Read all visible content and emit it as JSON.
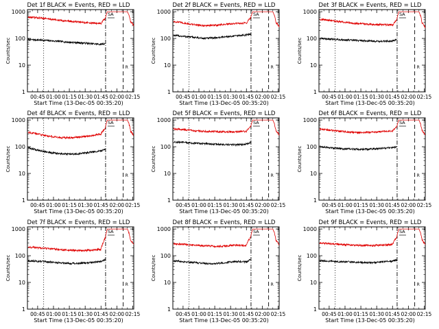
{
  "figure": {
    "common": {
      "xlabel": "Start Time (13-Dec-05 00:35:20)",
      "ylabel": "Counts/sec",
      "x_ticks": [
        "00:45",
        "01:00",
        "01:15",
        "01:30",
        "01:45",
        "02:00",
        "02:15"
      ],
      "y_ticks": [
        "1",
        "10",
        "100",
        "1000"
      ],
      "marker_labels": [
        "SA",
        "R"
      ],
      "colors": {
        "events": "#000000",
        "lld": "#e00000",
        "axes": "#000000"
      }
    }
  },
  "chart_data": [
    {
      "type": "line",
      "title": "Det 1f BLACK = Events, RED = LLD",
      "xlabel": "Start Time (13-Dec-05 00:35:20)",
      "ylabel": "Counts/sec",
      "x_range": [
        "00:35:20",
        "02:16:00"
      ],
      "ylim": [
        1,
        1200
      ],
      "y_scale": "log",
      "vlines": [
        {
          "time": "00:50:40",
          "style": "dotted"
        },
        {
          "time": "01:49:20",
          "style": "dash-dot"
        },
        {
          "time": "02:06:00",
          "style": "dashed"
        }
      ],
      "series": [
        {
          "name": "Events",
          "color": "#000000",
          "x": [
            "00:36",
            "00:45",
            "00:55",
            "01:05",
            "01:15",
            "01:25",
            "01:35",
            "01:45",
            "01:49"
          ],
          "y": [
            90,
            88,
            83,
            78,
            72,
            69,
            64,
            60,
            65
          ]
        },
        {
          "name": "LLD",
          "color": "#e00000",
          "x": [
            "00:36",
            "00:45",
            "00:55",
            "01:05",
            "01:15",
            "01:25",
            "01:35",
            "01:45",
            "01:49",
            "01:51",
            "02:10",
            "02:13",
            "02:16"
          ],
          "y": [
            620,
            600,
            540,
            480,
            440,
            410,
            380,
            360,
            560,
            1000,
            1000,
            420,
            300
          ]
        }
      ]
    },
    {
      "type": "line",
      "title": "Det 2f BLACK = Events, RED = LLD",
      "xlabel": "Start Time (13-Dec-05 00:35:20)",
      "ylabel": "Counts/sec",
      "x_range": [
        "00:35:20",
        "02:16:00"
      ],
      "ylim": [
        1,
        1200
      ],
      "y_scale": "log",
      "vlines": [
        {
          "time": "00:50:40",
          "style": "dotted"
        },
        {
          "time": "01:49:20",
          "style": "dash-dot"
        },
        {
          "time": "02:06:00",
          "style": "dashed"
        }
      ],
      "series": [
        {
          "name": "Events",
          "color": "#000000",
          "x": [
            "00:36",
            "00:45",
            "00:55",
            "01:05",
            "01:15",
            "01:25",
            "01:35",
            "01:45",
            "01:49"
          ],
          "y": [
            130,
            120,
            110,
            100,
            105,
            115,
            125,
            135,
            150
          ]
        },
        {
          "name": "LLD",
          "color": "#e00000",
          "x": [
            "00:36",
            "00:45",
            "00:55",
            "01:05",
            "01:15",
            "01:25",
            "01:35",
            "01:45",
            "01:49",
            "01:51",
            "02:10",
            "02:13",
            "02:16"
          ],
          "y": [
            430,
            380,
            330,
            300,
            310,
            340,
            360,
            380,
            600,
            1000,
            1000,
            400,
            280
          ]
        }
      ]
    },
    {
      "type": "line",
      "title": "Det 3f BLACK = Events, RED = LLD",
      "xlabel": "Start Time (13-Dec-05 00:35:20)",
      "ylabel": "Counts/sec",
      "x_range": [
        "00:35:20",
        "02:16:00"
      ],
      "ylim": [
        1,
        1200
      ],
      "y_scale": "log",
      "vlines": [
        {
          "time": "00:50:40",
          "style": "dotted"
        },
        {
          "time": "01:49:20",
          "style": "dash-dot"
        },
        {
          "time": "02:06:00",
          "style": "dashed"
        }
      ],
      "series": [
        {
          "name": "Events",
          "color": "#000000",
          "x": [
            "00:36",
            "00:45",
            "00:55",
            "01:05",
            "01:15",
            "01:25",
            "01:35",
            "01:45",
            "01:49"
          ],
          "y": [
            100,
            95,
            90,
            86,
            83,
            80,
            78,
            80,
            90
          ]
        },
        {
          "name": "LLD",
          "color": "#e00000",
          "x": [
            "00:36",
            "00:45",
            "00:55",
            "01:05",
            "01:15",
            "01:25",
            "01:35",
            "01:45",
            "01:49",
            "01:51",
            "02:10",
            "02:13",
            "02:16"
          ],
          "y": [
            520,
            480,
            420,
            380,
            360,
            340,
            330,
            320,
            500,
            1000,
            1000,
            380,
            260
          ]
        }
      ]
    },
    {
      "type": "line",
      "title": "Det 4f BLACK = Events, RED = LLD",
      "xlabel": "Start Time (13-Dec-05 00:35:20)",
      "ylabel": "Counts/sec",
      "x_range": [
        "00:35:20",
        "02:16:00"
      ],
      "ylim": [
        1,
        1200
      ],
      "y_scale": "log",
      "vlines": [
        {
          "time": "00:50:40",
          "style": "dotted"
        },
        {
          "time": "01:49:20",
          "style": "dash-dot"
        },
        {
          "time": "02:06:00",
          "style": "dashed"
        }
      ],
      "series": [
        {
          "name": "Events",
          "color": "#000000",
          "x": [
            "00:36",
            "00:45",
            "00:55",
            "01:05",
            "01:15",
            "01:25",
            "01:35",
            "01:45",
            "01:49"
          ],
          "y": [
            90,
            75,
            62,
            55,
            52,
            55,
            62,
            70,
            80
          ]
        },
        {
          "name": "LLD",
          "color": "#e00000",
          "x": [
            "00:36",
            "00:45",
            "00:55",
            "01:05",
            "01:15",
            "01:25",
            "01:35",
            "01:45",
            "01:49",
            "01:51",
            "02:10",
            "02:13",
            "02:16"
          ],
          "y": [
            350,
            300,
            250,
            220,
            215,
            230,
            260,
            300,
            500,
            1000,
            1000,
            380,
            260
          ]
        }
      ]
    },
    {
      "type": "line",
      "title": "Det 5f BLACK = Events, RED = LLD",
      "xlabel": "Start Time (13-Dec-05 00:35:20)",
      "ylabel": "Counts/sec",
      "x_range": [
        "00:35:20",
        "02:16:00"
      ],
      "ylim": [
        1,
        1200
      ],
      "y_scale": "log",
      "vlines": [
        {
          "time": "00:50:40",
          "style": "dotted"
        },
        {
          "time": "01:49:20",
          "style": "dash-dot"
        },
        {
          "time": "02:06:00",
          "style": "dashed"
        }
      ],
      "series": [
        {
          "name": "Events",
          "color": "#000000",
          "x": [
            "00:36",
            "00:45",
            "00:55",
            "01:05",
            "01:15",
            "01:25",
            "01:35",
            "01:45",
            "01:49"
          ],
          "y": [
            150,
            145,
            135,
            130,
            125,
            120,
            118,
            125,
            145
          ]
        },
        {
          "name": "LLD",
          "color": "#e00000",
          "x": [
            "00:36",
            "00:45",
            "00:55",
            "01:05",
            "01:15",
            "01:25",
            "01:35",
            "01:45",
            "01:49",
            "01:51",
            "02:10",
            "02:13",
            "02:16"
          ],
          "y": [
            460,
            440,
            400,
            380,
            370,
            360,
            360,
            380,
            560,
            1000,
            1000,
            400,
            280
          ]
        }
      ]
    },
    {
      "type": "line",
      "title": "Det 6f BLACK = Events, RED = LLD",
      "xlabel": "Start Time (13-Dec-05 00:35:20)",
      "ylabel": "Counts/sec",
      "x_range": [
        "00:35:20",
        "02:16:00"
      ],
      "ylim": [
        1,
        1200
      ],
      "y_scale": "log",
      "vlines": [
        {
          "time": "00:50:40",
          "style": "dotted"
        },
        {
          "time": "01:49:20",
          "style": "dash-dot"
        },
        {
          "time": "02:06:00",
          "style": "dashed"
        }
      ],
      "series": [
        {
          "name": "Events",
          "color": "#000000",
          "x": [
            "00:36",
            "00:45",
            "00:55",
            "01:05",
            "01:15",
            "01:25",
            "01:35",
            "01:45",
            "01:49"
          ],
          "y": [
            100,
            92,
            85,
            82,
            80,
            82,
            88,
            92,
            100
          ]
        },
        {
          "name": "LLD",
          "color": "#e00000",
          "x": [
            "00:36",
            "00:45",
            "00:55",
            "01:05",
            "01:15",
            "01:25",
            "01:35",
            "01:45",
            "01:49",
            "01:51",
            "02:10",
            "02:13",
            "02:16"
          ],
          "y": [
            450,
            420,
            380,
            350,
            340,
            350,
            370,
            390,
            560,
            1000,
            1000,
            400,
            280
          ]
        }
      ]
    },
    {
      "type": "line",
      "title": "Det 7f BLACK = Events, RED = LLD",
      "xlabel": "Start Time (13-Dec-05 00:35:20)",
      "ylabel": "Counts/sec",
      "x_range": [
        "00:35:20",
        "02:16:00"
      ],
      "ylim": [
        1,
        1200
      ],
      "y_scale": "log",
      "vlines": [
        {
          "time": "00:50:40",
          "style": "dotted"
        },
        {
          "time": "01:49:20",
          "style": "dash-dot"
        },
        {
          "time": "02:06:00",
          "style": "dashed"
        }
      ],
      "series": [
        {
          "name": "Events",
          "color": "#000000",
          "x": [
            "00:36",
            "00:45",
            "00:55",
            "01:05",
            "01:15",
            "01:25",
            "01:35",
            "01:45",
            "01:49"
          ],
          "y": [
            65,
            62,
            58,
            55,
            52,
            52,
            55,
            60,
            70
          ]
        },
        {
          "name": "LLD",
          "color": "#e00000",
          "x": [
            "00:36",
            "00:45",
            "00:55",
            "01:05",
            "01:15",
            "01:25",
            "01:35",
            "01:45",
            "01:49",
            "01:51",
            "02:10",
            "02:13",
            "02:16"
          ],
          "y": [
            210,
            200,
            185,
            170,
            160,
            155,
            160,
            175,
            450,
            1000,
            1000,
            380,
            260
          ]
        }
      ]
    },
    {
      "type": "line",
      "title": "Det 8f BLACK = Events, RED = LLD",
      "xlabel": "Start Time (13-Dec-05 00:35:20)",
      "ylabel": "Counts/sec",
      "x_range": [
        "00:35:20",
        "02:16:00"
      ],
      "ylim": [
        1,
        1200
      ],
      "y_scale": "log",
      "vlines": [
        {
          "time": "00:50:40",
          "style": "dotted"
        },
        {
          "time": "01:49:20",
          "style": "dash-dot"
        },
        {
          "time": "02:06:00",
          "style": "dashed"
        }
      ],
      "series": [
        {
          "name": "Events",
          "color": "#000000",
          "x": [
            "00:36",
            "00:45",
            "00:55",
            "01:05",
            "01:15",
            "01:25",
            "01:35",
            "01:45",
            "01:49"
          ],
          "y": [
            65,
            60,
            56,
            52,
            50,
            55,
            62,
            58,
            70
          ]
        },
        {
          "name": "LLD",
          "color": "#e00000",
          "x": [
            "00:36",
            "00:45",
            "00:55",
            "01:05",
            "01:15",
            "01:25",
            "01:35",
            "01:45",
            "01:49",
            "01:51",
            "02:10",
            "02:13",
            "02:16"
          ],
          "y": [
            280,
            270,
            250,
            235,
            225,
            230,
            250,
            240,
            500,
            1000,
            1000,
            380,
            260
          ]
        }
      ]
    },
    {
      "type": "line",
      "title": "Det 9f BLACK = Events, RED = LLD",
      "xlabel": "Start Time (13-Dec-05 00:35:20)",
      "ylabel": "Counts/sec",
      "x_range": [
        "00:35:20",
        "02:16:00"
      ],
      "ylim": [
        1,
        1200
      ],
      "y_scale": "log",
      "vlines": [
        {
          "time": "00:50:40",
          "style": "dotted"
        },
        {
          "time": "01:49:20",
          "style": "dash-dot"
        },
        {
          "time": "02:06:00",
          "style": "dashed"
        }
      ],
      "series": [
        {
          "name": "Events",
          "color": "#000000",
          "x": [
            "00:36",
            "00:45",
            "00:55",
            "01:05",
            "01:15",
            "01:25",
            "01:35",
            "01:45",
            "01:49"
          ],
          "y": [
            65,
            62,
            60,
            58,
            56,
            55,
            58,
            62,
            70
          ]
        },
        {
          "name": "LLD",
          "color": "#e00000",
          "x": [
            "00:36",
            "00:45",
            "00:55",
            "01:05",
            "01:15",
            "01:25",
            "01:35",
            "01:45",
            "01:49",
            "01:51",
            "02:10",
            "02:13",
            "02:16"
          ],
          "y": [
            300,
            280,
            265,
            255,
            245,
            240,
            250,
            265,
            500,
            1000,
            1000,
            380,
            260
          ]
        }
      ]
    }
  ]
}
